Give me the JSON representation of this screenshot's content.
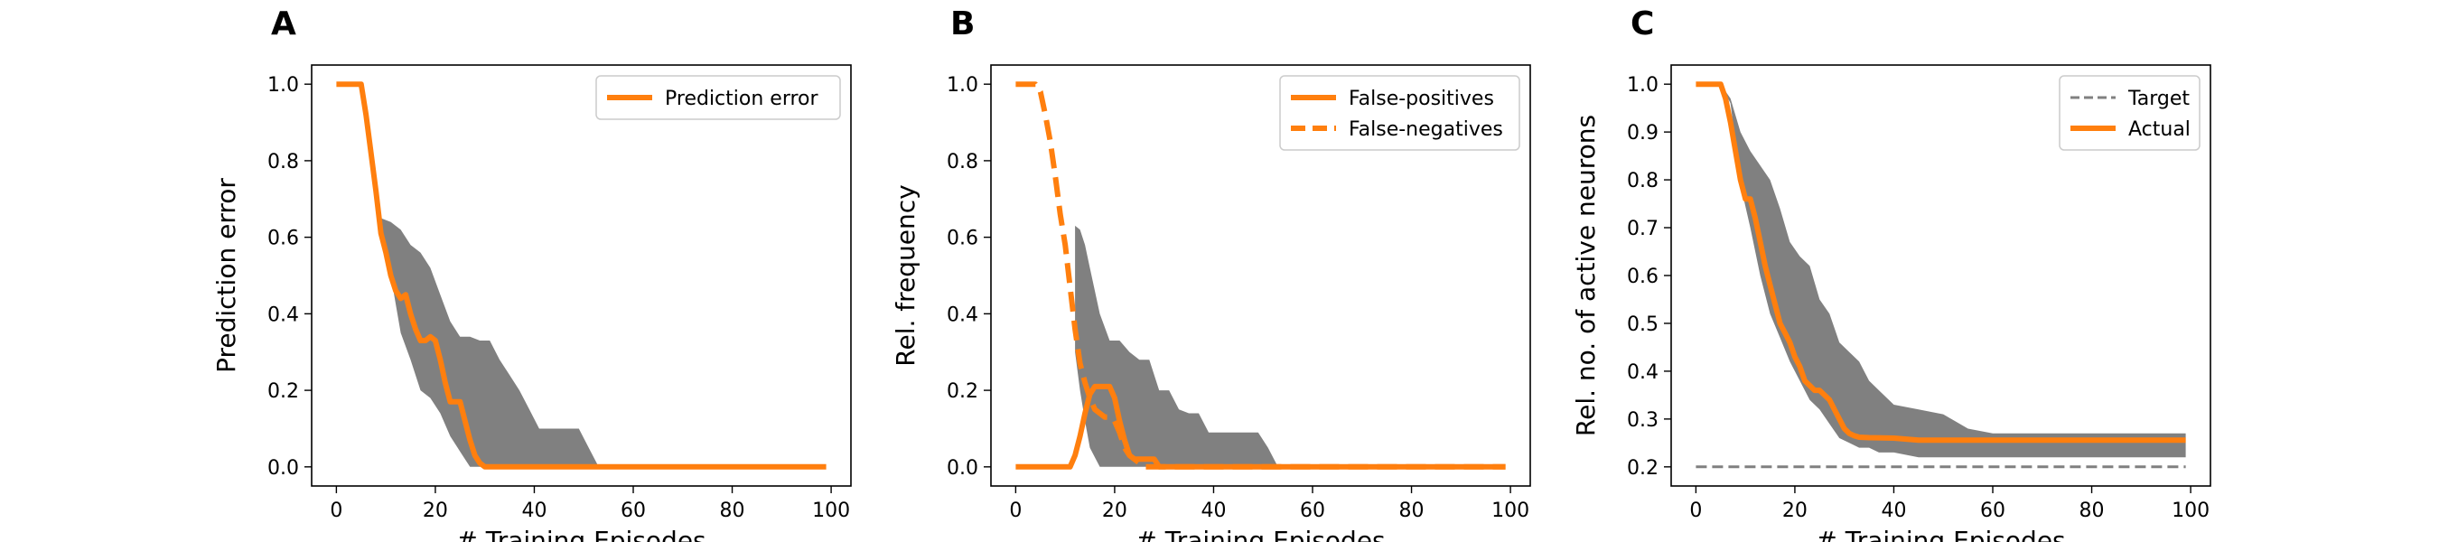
{
  "chart_data": [
    {
      "panel": "A",
      "type": "line",
      "xlabel": "# Training Episodes",
      "ylabel": "Prediction error",
      "xlim": [
        -5,
        104
      ],
      "ylim": [
        -0.05,
        1.05
      ],
      "xticks": [
        0,
        20,
        40,
        60,
        80,
        100
      ],
      "yticks": [
        0.0,
        0.2,
        0.4,
        0.6,
        0.8,
        1.0
      ],
      "ytick_labels": [
        "0.0",
        "0.2",
        "0.4",
        "0.6",
        "0.8",
        "1.0"
      ],
      "grid": false,
      "legend": "top-right",
      "band": {
        "x": [
          9,
          11,
          13,
          15,
          17,
          19,
          21,
          23,
          25,
          27,
          29,
          31,
          33,
          35,
          37,
          39,
          41,
          43,
          45,
          47,
          49,
          51,
          53
        ],
        "upper": [
          0.65,
          0.64,
          0.62,
          0.58,
          0.56,
          0.52,
          0.45,
          0.38,
          0.34,
          0.34,
          0.33,
          0.33,
          0.28,
          0.24,
          0.2,
          0.15,
          0.1,
          0.1,
          0.1,
          0.1,
          0.1,
          0.05,
          0.0
        ],
        "lower": [
          0.6,
          0.5,
          0.35,
          0.28,
          0.2,
          0.18,
          0.14,
          0.08,
          0.04,
          0.0,
          0.0,
          0.0,
          0.0,
          0.0,
          0.0,
          0.0,
          0.0,
          0.0,
          0.0,
          0.0,
          0.0,
          0.0,
          0.0
        ]
      },
      "series": [
        {
          "name": "Prediction error",
          "style": "solid",
          "x": [
            0,
            1,
            2,
            3,
            4,
            5,
            6,
            7,
            8,
            9,
            10,
            11,
            12,
            13,
            14,
            15,
            16,
            17,
            18,
            19,
            20,
            21,
            22,
            23,
            24,
            25,
            26,
            27,
            28,
            29,
            30,
            31,
            35,
            40,
            50,
            60,
            70,
            80,
            90,
            99
          ],
          "values": [
            1.0,
            1.0,
            1.0,
            1.0,
            1.0,
            1.0,
            0.92,
            0.82,
            0.72,
            0.61,
            0.56,
            0.5,
            0.46,
            0.44,
            0.45,
            0.4,
            0.36,
            0.33,
            0.33,
            0.34,
            0.33,
            0.28,
            0.22,
            0.17,
            0.17,
            0.17,
            0.12,
            0.07,
            0.03,
            0.01,
            0.0,
            0.0,
            0.0,
            0.0,
            0.0,
            0.0,
            0.0,
            0.0,
            0.0,
            0.0
          ]
        }
      ]
    },
    {
      "panel": "B",
      "type": "line",
      "xlabel": "# Training Episodes",
      "ylabel": "Rel. frequency",
      "xlim": [
        -5,
        104
      ],
      "ylim": [
        -0.05,
        1.05
      ],
      "xticks": [
        0,
        20,
        40,
        60,
        80,
        100
      ],
      "yticks": [
        0.0,
        0.2,
        0.4,
        0.6,
        0.8,
        1.0
      ],
      "ytick_labels": [
        "0.0",
        "0.2",
        "0.4",
        "0.6",
        "0.8",
        "1.0"
      ],
      "grid": false,
      "legend": "top-right",
      "band": {
        "x": [
          12,
          13,
          14,
          15,
          17,
          19,
          21,
          23,
          25,
          27,
          29,
          31,
          33,
          35,
          37,
          39,
          41,
          43,
          45,
          47,
          49,
          51,
          53
        ],
        "upper": [
          0.63,
          0.62,
          0.58,
          0.52,
          0.4,
          0.33,
          0.33,
          0.3,
          0.28,
          0.28,
          0.2,
          0.2,
          0.15,
          0.14,
          0.14,
          0.09,
          0.09,
          0.09,
          0.09,
          0.09,
          0.09,
          0.05,
          0.0
        ],
        "lower": [
          0.3,
          0.2,
          0.12,
          0.05,
          0.0,
          0.0,
          0.0,
          0.0,
          0.0,
          0.0,
          0.0,
          0.0,
          0.0,
          0.0,
          0.0,
          0.0,
          0.0,
          0.0,
          0.0,
          0.0,
          0.0,
          0.0,
          0.0
        ]
      },
      "series": [
        {
          "name": "False-positives",
          "style": "solid",
          "x": [
            0,
            5,
            10,
            11,
            12,
            13,
            14,
            15,
            16,
            17,
            18,
            19,
            20,
            21,
            22,
            23,
            24,
            25,
            26,
            27,
            28,
            29,
            30,
            40,
            60,
            80,
            99
          ],
          "values": [
            0.0,
            0.0,
            0.0,
            0.0,
            0.03,
            0.08,
            0.14,
            0.19,
            0.21,
            0.21,
            0.21,
            0.21,
            0.18,
            0.12,
            0.07,
            0.03,
            0.02,
            0.02,
            0.02,
            0.02,
            0.02,
            0.0,
            0.0,
            0.0,
            0.0,
            0.0,
            0.0
          ]
        },
        {
          "name": "False-negatives",
          "style": "dashed",
          "x": [
            0,
            1,
            2,
            3,
            4,
            5,
            6,
            7,
            8,
            9,
            10,
            11,
            12,
            13,
            14,
            15,
            16,
            17,
            18,
            19,
            20,
            21,
            22,
            23,
            24,
            25,
            26,
            27,
            28,
            29,
            30,
            40,
            60,
            80,
            99
          ],
          "values": [
            1.0,
            1.0,
            1.0,
            1.0,
            1.0,
            0.98,
            0.92,
            0.85,
            0.76,
            0.66,
            0.58,
            0.47,
            0.36,
            0.27,
            0.22,
            0.18,
            0.15,
            0.14,
            0.13,
            0.13,
            0.12,
            0.09,
            0.05,
            0.03,
            0.02,
            0.01,
            0.0,
            0.0,
            0.0,
            0.0,
            0.0,
            0.0,
            0.0,
            0.0,
            0.0
          ]
        }
      ]
    },
    {
      "panel": "C",
      "type": "line",
      "xlabel": "# Training Episodes",
      "ylabel": "Rel. no. of active neurons",
      "xlim": [
        -5,
        104
      ],
      "ylim": [
        0.16,
        1.04
      ],
      "xticks": [
        0,
        20,
        40,
        60,
        80,
        100
      ],
      "yticks": [
        0.2,
        0.3,
        0.4,
        0.5,
        0.6,
        0.7,
        0.8,
        0.9,
        1.0
      ],
      "ytick_labels": [
        "0.2",
        "0.3",
        "0.4",
        "0.5",
        "0.6",
        "0.7",
        "0.8",
        "0.9",
        "1.0"
      ],
      "grid": false,
      "legend": "top-right",
      "band": {
        "x": [
          5,
          7,
          9,
          11,
          13,
          15,
          17,
          19,
          21,
          23,
          25,
          27,
          29,
          31,
          33,
          35,
          37,
          40,
          45,
          50,
          55,
          60,
          70,
          80,
          90,
          99
        ],
        "upper": [
          1.0,
          0.97,
          0.9,
          0.86,
          0.83,
          0.8,
          0.74,
          0.67,
          0.64,
          0.62,
          0.55,
          0.52,
          0.46,
          0.44,
          0.42,
          0.38,
          0.36,
          0.33,
          0.32,
          0.31,
          0.28,
          0.27,
          0.27,
          0.27,
          0.27,
          0.27
        ],
        "lower": [
          1.0,
          0.96,
          0.79,
          0.7,
          0.6,
          0.52,
          0.47,
          0.42,
          0.38,
          0.34,
          0.32,
          0.29,
          0.26,
          0.25,
          0.24,
          0.24,
          0.23,
          0.23,
          0.22,
          0.22,
          0.22,
          0.22,
          0.22,
          0.22,
          0.22,
          0.22
        ]
      },
      "series": [
        {
          "name": "Target",
          "style": "dashed",
          "color": "gray",
          "x": [
            0,
            99
          ],
          "values": [
            0.2,
            0.2
          ]
        },
        {
          "name": "Actual",
          "style": "solid",
          "x": [
            0,
            2,
            4,
            5,
            6,
            7,
            8,
            9,
            10,
            11,
            12,
            13,
            14,
            15,
            16,
            17,
            18,
            19,
            20,
            21,
            22,
            23,
            24,
            25,
            26,
            27,
            28,
            29,
            30,
            31,
            32,
            33,
            35,
            40,
            45,
            50,
            60,
            70,
            80,
            90,
            99
          ],
          "values": [
            1.0,
            1.0,
            1.0,
            1.0,
            0.97,
            0.92,
            0.86,
            0.8,
            0.76,
            0.76,
            0.72,
            0.67,
            0.62,
            0.58,
            0.54,
            0.5,
            0.48,
            0.46,
            0.43,
            0.41,
            0.38,
            0.37,
            0.36,
            0.36,
            0.35,
            0.34,
            0.32,
            0.3,
            0.28,
            0.27,
            0.265,
            0.262,
            0.261,
            0.26,
            0.256,
            0.256,
            0.256,
            0.256,
            0.256,
            0.256,
            0.256
          ]
        }
      ]
    }
  ],
  "colors": {
    "line": "#ff7f0e",
    "band": "#808080",
    "target": "#808080",
    "axes": "#000000"
  }
}
